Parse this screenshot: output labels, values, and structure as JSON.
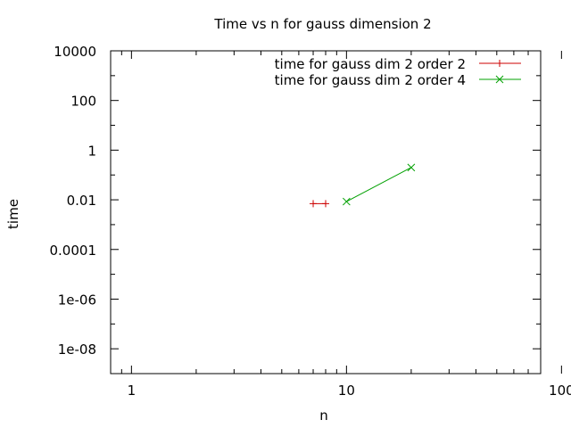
{
  "chart_data": {
    "type": "line",
    "title": "Time vs n for gauss dimension 2",
    "xlabel": "n",
    "ylabel": "time",
    "x_scale": "log",
    "y_scale": "log",
    "xlim": [
      0.8,
      80
    ],
    "ylim": [
      1e-09,
      10000
    ],
    "x_ticks": [
      {
        "value": 1,
        "label": "1"
      },
      {
        "value": 10,
        "label": "10"
      },
      {
        "value": 100,
        "label": "100"
      }
    ],
    "y_ticks": [
      {
        "value": 10000,
        "label": "10000"
      },
      {
        "value": 100,
        "label": "100"
      },
      {
        "value": 1,
        "label": "1"
      },
      {
        "value": 0.01,
        "label": "0.01"
      },
      {
        "value": 0.0001,
        "label": "0.0001"
      },
      {
        "value": 1e-06,
        "label": "1e-06"
      },
      {
        "value": 1e-08,
        "label": "1e-08"
      }
    ],
    "grid": false,
    "legend_position": "top-right",
    "series": [
      {
        "name": "time for gauss dim 2 order 2",
        "color": "#cc0000",
        "marker": "plus",
        "points": [
          {
            "x": 7,
            "y": 0.007
          },
          {
            "x": 8,
            "y": 0.007
          }
        ]
      },
      {
        "name": "time for gauss dim 2 order 4",
        "color": "#00a000",
        "marker": "cross",
        "points": [
          {
            "x": 10,
            "y": 0.0085
          },
          {
            "x": 20,
            "y": 0.2
          }
        ]
      }
    ]
  }
}
